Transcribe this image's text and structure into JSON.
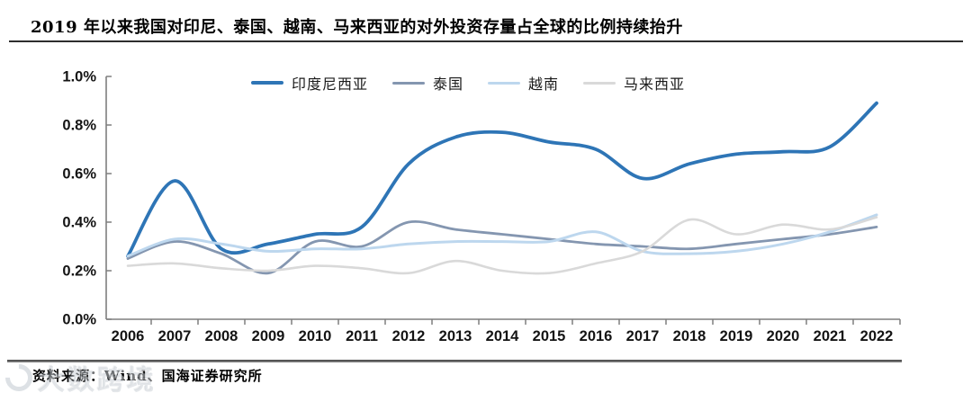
{
  "title": "2019 年以来我国对印尼、泰国、越南、马来西亚的对外投资存量占全球的比例持续抬升",
  "footer": {
    "source": "资料来源：Wind、国海证券研究所"
  },
  "watermark": {
    "text": "大数跨境"
  },
  "chart_data": {
    "type": "line",
    "title": "2019 年以来我国对印尼、泰国、越南、马来西亚的对外投资存量占全球的比例持续抬升",
    "xlabel": "",
    "ylabel": "",
    "value_unit": "%",
    "ylim": [
      0.0,
      1.0
    ],
    "ytick_step": 0.2,
    "ytick_labels": [
      "0.0%",
      "0.2%",
      "0.4%",
      "0.6%",
      "0.8%",
      "1.0%"
    ],
    "grid": false,
    "legend_position": "top-center",
    "smoothed_lines": true,
    "x": [
      2006,
      2007,
      2008,
      2009,
      2010,
      2011,
      2012,
      2013,
      2014,
      2015,
      2016,
      2017,
      2018,
      2019,
      2020,
      2021,
      2022
    ],
    "series": [
      {
        "key": "indonesia",
        "name": "印度尼西亚",
        "color": "#2E75B6",
        "line_width": 3.8,
        "values": [
          0.26,
          0.57,
          0.29,
          0.31,
          0.35,
          0.38,
          0.64,
          0.75,
          0.77,
          0.73,
          0.7,
          0.58,
          0.64,
          0.68,
          0.69,
          0.71,
          0.89
        ]
      },
      {
        "key": "thailand",
        "name": "泰国",
        "color": "#8496B0",
        "line_width": 2.8,
        "values": [
          0.25,
          0.32,
          0.27,
          0.19,
          0.32,
          0.3,
          0.4,
          0.37,
          0.35,
          0.33,
          0.31,
          0.3,
          0.29,
          0.31,
          0.33,
          0.35,
          0.38
        ]
      },
      {
        "key": "vietnam",
        "name": "越南",
        "color": "#BDD7EE",
        "line_width": 3.0,
        "values": [
          0.26,
          0.33,
          0.31,
          0.28,
          0.29,
          0.29,
          0.31,
          0.32,
          0.32,
          0.32,
          0.36,
          0.28,
          0.27,
          0.28,
          0.31,
          0.36,
          0.43
        ]
      },
      {
        "key": "malaysia",
        "name": "马来西亚",
        "color": "#D9D9D9",
        "line_width": 2.6,
        "values": [
          0.22,
          0.23,
          0.21,
          0.2,
          0.22,
          0.21,
          0.19,
          0.24,
          0.2,
          0.19,
          0.23,
          0.28,
          0.41,
          0.35,
          0.39,
          0.37,
          0.42
        ]
      }
    ],
    "axis_color": "#7f7f7f",
    "tick_label_color": "#141414"
  }
}
